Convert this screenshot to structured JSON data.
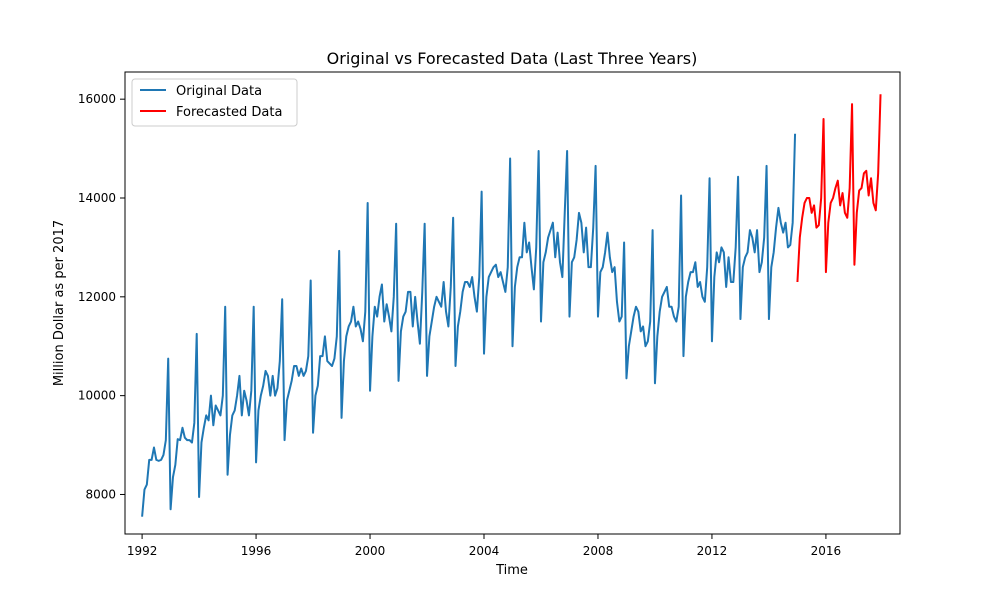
{
  "chart_data": {
    "type": "line",
    "title": "Original vs Forecasted Data (Last Three Years)",
    "xlabel": "Time",
    "ylabel": "Million Dollar as per 2017",
    "xlim": [
      1991.4,
      2018.6
    ],
    "ylim": [
      7200,
      16550
    ],
    "x_ticks": [
      1992,
      1996,
      2000,
      2004,
      2008,
      2012,
      2016
    ],
    "y_ticks": [
      8000,
      10000,
      12000,
      14000,
      16000
    ],
    "grid": false,
    "legend": "top-left",
    "series": [
      {
        "name": "Original Data",
        "color": "#1f77b4",
        "start": 1992.0,
        "step": 0.0833333,
        "values": [
          7550,
          8100,
          8200,
          8700,
          8700,
          8950,
          8700,
          8680,
          8700,
          8800,
          9100,
          10750,
          7700,
          8350,
          8600,
          9120,
          9100,
          9350,
          9150,
          9100,
          9100,
          9050,
          9450,
          11250,
          7950,
          9050,
          9350,
          9600,
          9500,
          10000,
          9400,
          9800,
          9700,
          9600,
          10000,
          11800,
          8400,
          9200,
          9600,
          9700,
          10000,
          10400,
          9600,
          10100,
          9900,
          9600,
          10100,
          11800,
          8650,
          9700,
          10000,
          10200,
          10500,
          10400,
          10000,
          10400,
          10000,
          10150,
          10700,
          11950,
          9100,
          9900,
          10100,
          10300,
          10600,
          10600,
          10400,
          10550,
          10400,
          10500,
          10800,
          12330,
          9250,
          10000,
          10200,
          10800,
          10800,
          11200,
          10700,
          10650,
          10600,
          10750,
          11200,
          12930,
          9550,
          10700,
          11200,
          11400,
          11500,
          11800,
          11400,
          11500,
          11350,
          11100,
          11700,
          13900,
          10100,
          11200,
          11800,
          11600,
          12000,
          12250,
          11500,
          11850,
          11600,
          11300,
          12000,
          13480,
          10300,
          11300,
          11600,
          11700,
          12100,
          12100,
          11400,
          12000,
          11500,
          11050,
          12100,
          13480,
          10400,
          11200,
          11500,
          11800,
          12000,
          11900,
          11800,
          12300,
          11700,
          11400,
          12200,
          13600,
          10600,
          11400,
          11700,
          12100,
          12300,
          12300,
          12200,
          12400,
          12000,
          11700,
          12400,
          14130,
          10850,
          12000,
          12400,
          12500,
          12600,
          12650,
          12400,
          12500,
          12300,
          12100,
          12600,
          14800,
          11000,
          12200,
          12600,
          12800,
          12800,
          13500,
          12900,
          13100,
          12600,
          12150,
          13000,
          14950,
          11500,
          12700,
          12900,
          13200,
          13350,
          13500,
          12800,
          13300,
          12700,
          12400,
          13700,
          14950,
          11600,
          12700,
          12800,
          13150,
          13700,
          13500,
          12900,
          13400,
          12600,
          12600,
          13400,
          14650,
          11600,
          12500,
          12600,
          12900,
          13300,
          12800,
          12500,
          12600,
          11900,
          11500,
          11600,
          13100,
          10350,
          11000,
          11300,
          11600,
          11800,
          11700,
          11300,
          11400,
          11000,
          11100,
          11500,
          13350,
          10250,
          11200,
          11700,
          12000,
          12100,
          12200,
          11800,
          11800,
          11600,
          11500,
          11800,
          14050,
          10800,
          12000,
          12300,
          12500,
          12500,
          12700,
          12200,
          12300,
          12000,
          11900,
          12600,
          14400,
          11100,
          12400,
          12900,
          12700,
          13000,
          12900,
          12200,
          12800,
          12300,
          12300,
          13000,
          14430,
          11550,
          12600,
          12800,
          12900,
          13350,
          13200,
          12900,
          13350,
          12500,
          12700,
          13200,
          14650,
          11550,
          12600,
          12900,
          13400,
          13800,
          13500,
          13300,
          13500,
          13000,
          13050,
          13500,
          15300
        ]
      },
      {
        "name": "Forecasted Data",
        "color": "#ff0000",
        "start": 2015.0,
        "step": 0.0833333,
        "values": [
          12300,
          13200,
          13600,
          13900,
          14000,
          14000,
          13700,
          13850,
          13400,
          13450,
          14000,
          15600,
          12500,
          13500,
          13900,
          14000,
          14200,
          14350,
          13850,
          14100,
          13700,
          13600,
          14200,
          15900,
          12650,
          13700,
          14150,
          14200,
          14500,
          14550,
          14050,
          14400,
          13900,
          13750,
          14500,
          16100
        ]
      }
    ]
  }
}
